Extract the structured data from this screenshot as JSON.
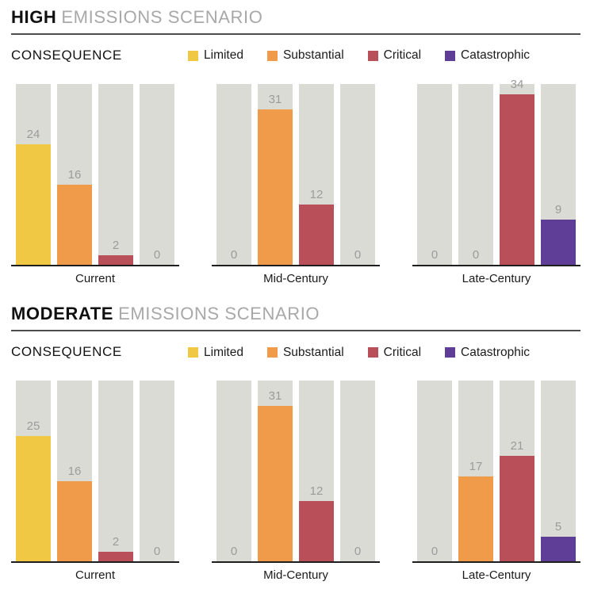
{
  "consequence_label": "CONSEQUENCE",
  "colors": {
    "limited": "#f0c843",
    "substantial": "#ef9b4a",
    "critical": "#b94f58",
    "catastrophic": "#5e3e96",
    "bar_track": "#dbdbd5",
    "value_label": "#9b9b9b",
    "title_gray": "#a8a8a8",
    "title_black": "#111111",
    "axis": "#1e1e1e"
  },
  "legend": [
    {
      "label": "Limited",
      "color": "#f0c843"
    },
    {
      "label": "Substantial",
      "color": "#ef9b4a"
    },
    {
      "label": "Critical",
      "color": "#b94f58"
    },
    {
      "label": "Catastrophic",
      "color": "#5e3e96"
    }
  ],
  "chart_data": [
    {
      "type": "bar",
      "title": "HIGH EMISSIONS SCENARIO",
      "title_bold": "HIGH",
      "title_rest": "EMISSIONS SCENARIO",
      "categories": [
        "Current",
        "Mid-Century",
        "Late-Century"
      ],
      "series": [
        {
          "name": "Limited",
          "color": "#f0c843",
          "values": [
            24,
            0,
            0
          ]
        },
        {
          "name": "Substantial",
          "color": "#ef9b4a",
          "values": [
            16,
            31,
            0
          ]
        },
        {
          "name": "Critical",
          "color": "#b94f58",
          "values": [
            2,
            12,
            34
          ]
        },
        {
          "name": "Catastrophic",
          "color": "#5e3e96",
          "values": [
            0,
            0,
            9
          ]
        }
      ],
      "ylim": [
        0,
        36
      ],
      "grid": false,
      "legend_position": "top",
      "value_labels": true
    },
    {
      "type": "bar",
      "title": "MODERATE EMISSIONS SCENARIO",
      "title_bold": "MODERATE",
      "title_rest": "EMISSIONS SCENARIO",
      "categories": [
        "Current",
        "Mid-Century",
        "Late-Century"
      ],
      "series": [
        {
          "name": "Limited",
          "color": "#f0c843",
          "values": [
            25,
            0,
            0
          ]
        },
        {
          "name": "Substantial",
          "color": "#ef9b4a",
          "values": [
            16,
            31,
            17
          ]
        },
        {
          "name": "Critical",
          "color": "#b94f58",
          "values": [
            2,
            12,
            21
          ]
        },
        {
          "name": "Catastrophic",
          "color": "#5e3e96",
          "values": [
            0,
            0,
            5
          ]
        }
      ],
      "ylim": [
        0,
        36
      ],
      "grid": false,
      "legend_position": "top",
      "value_labels": true
    }
  ]
}
